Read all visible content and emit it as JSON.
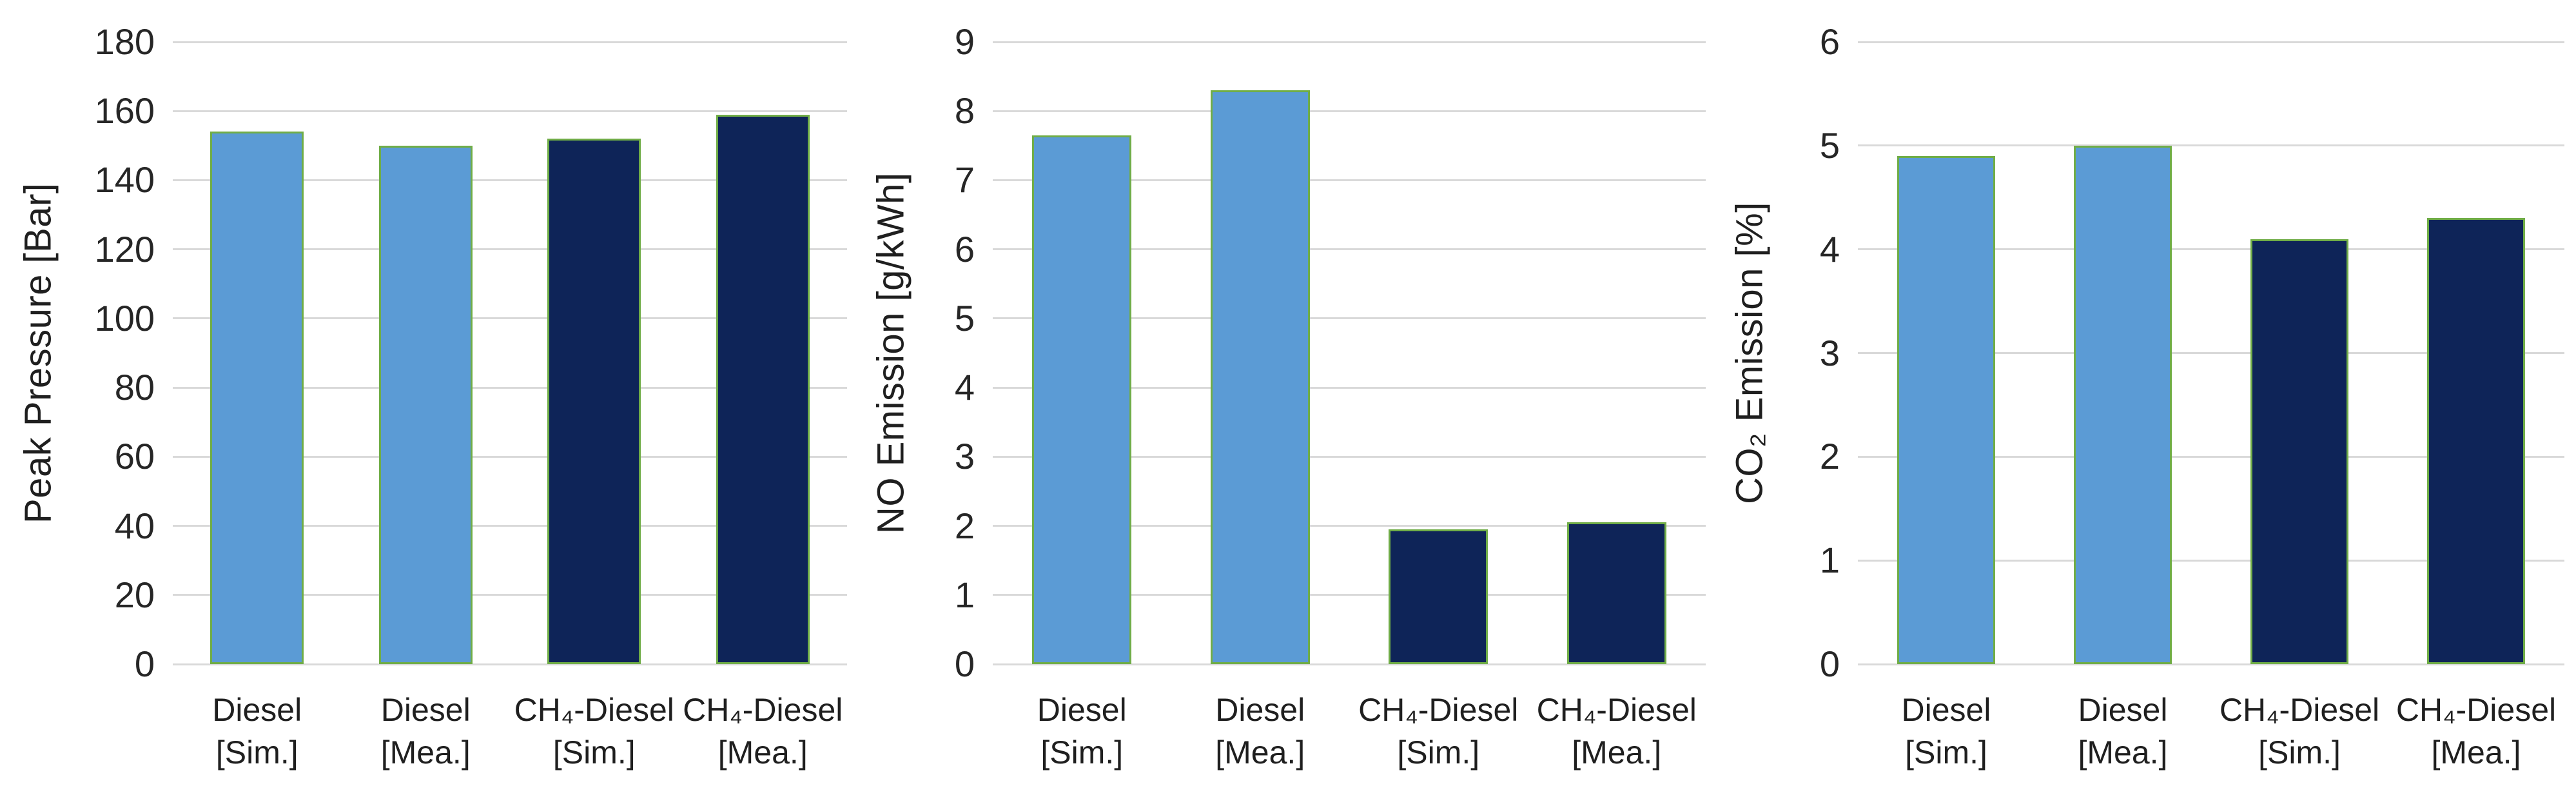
{
  "figure": {
    "background": "#ffffff",
    "text_color": "#1f1f1f",
    "gridline_color": "#d9d9d9"
  },
  "colors": {
    "diesel_fill": "#5b9bd5",
    "ch4_diesel_fill": "#0e2458",
    "bar_border_green": "#70ad47"
  },
  "chart_data": [
    {
      "type": "bar",
      "title": "",
      "ylabel": "Peak Pressure [Bar]",
      "xlabel": "",
      "categories": [
        "Diesel\n[Sim.]",
        "Diesel\n[Mea.]",
        "CH₄-Diesel\n[Sim.]",
        "CH₄-Diesel\n[Mea.]"
      ],
      "values": [
        154,
        150,
        152,
        159
      ],
      "bar_colors": [
        "#5b9bd5",
        "#5b9bd5",
        "#0e2458",
        "#0e2458"
      ],
      "ylim": [
        0,
        180
      ],
      "ytick_step": 20,
      "grid": true,
      "legend": "none"
    },
    {
      "type": "bar",
      "title": "",
      "ylabel": "NO Emission [g/kWh]",
      "xlabel": "",
      "categories": [
        "Diesel\n[Sim.]",
        "Diesel\n[Mea.]",
        "CH₄-Diesel\n[Sim.]",
        "CH₄-Diesel\n[Mea.]"
      ],
      "values": [
        7.65,
        8.3,
        1.95,
        2.05
      ],
      "bar_colors": [
        "#5b9bd5",
        "#5b9bd5",
        "#0e2458",
        "#0e2458"
      ],
      "ylim": [
        0,
        9
      ],
      "ytick_step": 1,
      "grid": true,
      "legend": "none"
    },
    {
      "type": "bar",
      "title": "",
      "ylabel": "CO₂ Emission [%]",
      "xlabel": "",
      "categories": [
        "Diesel\n[Sim.]",
        "Diesel\n[Mea.]",
        "CH₄-Diesel\n[Sim.]",
        "CH₄-Diesel\n[Mea.]"
      ],
      "values": [
        4.9,
        5.0,
        4.1,
        4.3
      ],
      "bar_colors": [
        "#5b9bd5",
        "#5b9bd5",
        "#0e2458",
        "#0e2458"
      ],
      "ylim": [
        0,
        6
      ],
      "ytick_step": 1,
      "grid": true,
      "legend": "none"
    }
  ]
}
